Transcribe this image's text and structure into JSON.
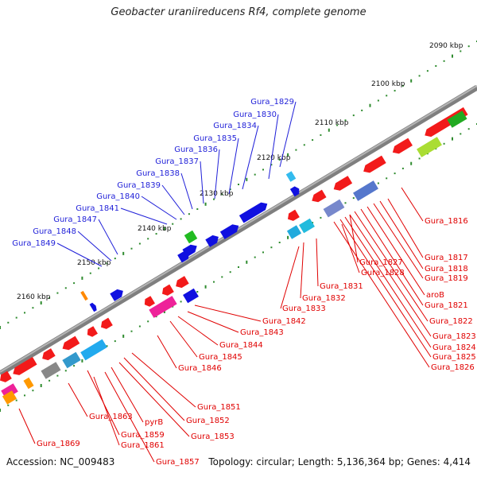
{
  "title": "Geobacter uraniireducens Rf4, complete genome",
  "footer": {
    "accession": "Accession: NC_009483",
    "summary": "Topology: circular; Length: 5,136,364 bp; Genes: 4,414"
  },
  "colors": {
    "backbone": "#8a8a8a",
    "reverse_label": "#e00000",
    "forward_label": "#1f1fd8",
    "tick": "#2e8b2e",
    "gene_red": "#f21a1a",
    "gene_blue": "#1010e0"
  },
  "scale_labels": [
    "2090 kbp",
    "2100 kbp",
    "2110 kbp",
    "2120 kbp",
    "2130 kbp",
    "2140 kbp",
    "2150 kbp",
    "2160 kbp"
  ],
  "forward_gene_labels": [
    "Gura_1829",
    "Gura_1830",
    "Gura_1834",
    "Gura_1835",
    "Gura_1836",
    "Gura_1837",
    "Gura_1838",
    "Gura_1839",
    "Gura_1840",
    "Gura_1841",
    "Gura_1847",
    "Gura_1848",
    "Gura_1849"
  ],
  "reverse_gene_labels_right": [
    "Gura_1816",
    "Gura_1817",
    "Gura_1818",
    "Gura_1819",
    "aroB",
    "Gura_1821",
    "Gura_1822",
    "Gura_1823",
    "Gura_1824",
    "Gura_1825",
    "Gura_1826",
    "Gura_1827",
    "Gura_1828",
    "Gura_1831",
    "Gura_1832",
    "Gura_1833"
  ],
  "reverse_gene_labels_center": [
    "Gura_1842",
    "Gura_1843",
    "Gura_1844",
    "Gura_1845",
    "Gura_1846"
  ],
  "reverse_gene_labels_bottom": [
    "Gura_1851",
    "Gura_1852",
    "Gura_1853",
    "pyrB",
    "Gura_1857",
    "Gura_1859",
    "Gura_1861",
    "Gura_1863",
    "Gura_1869"
  ]
}
